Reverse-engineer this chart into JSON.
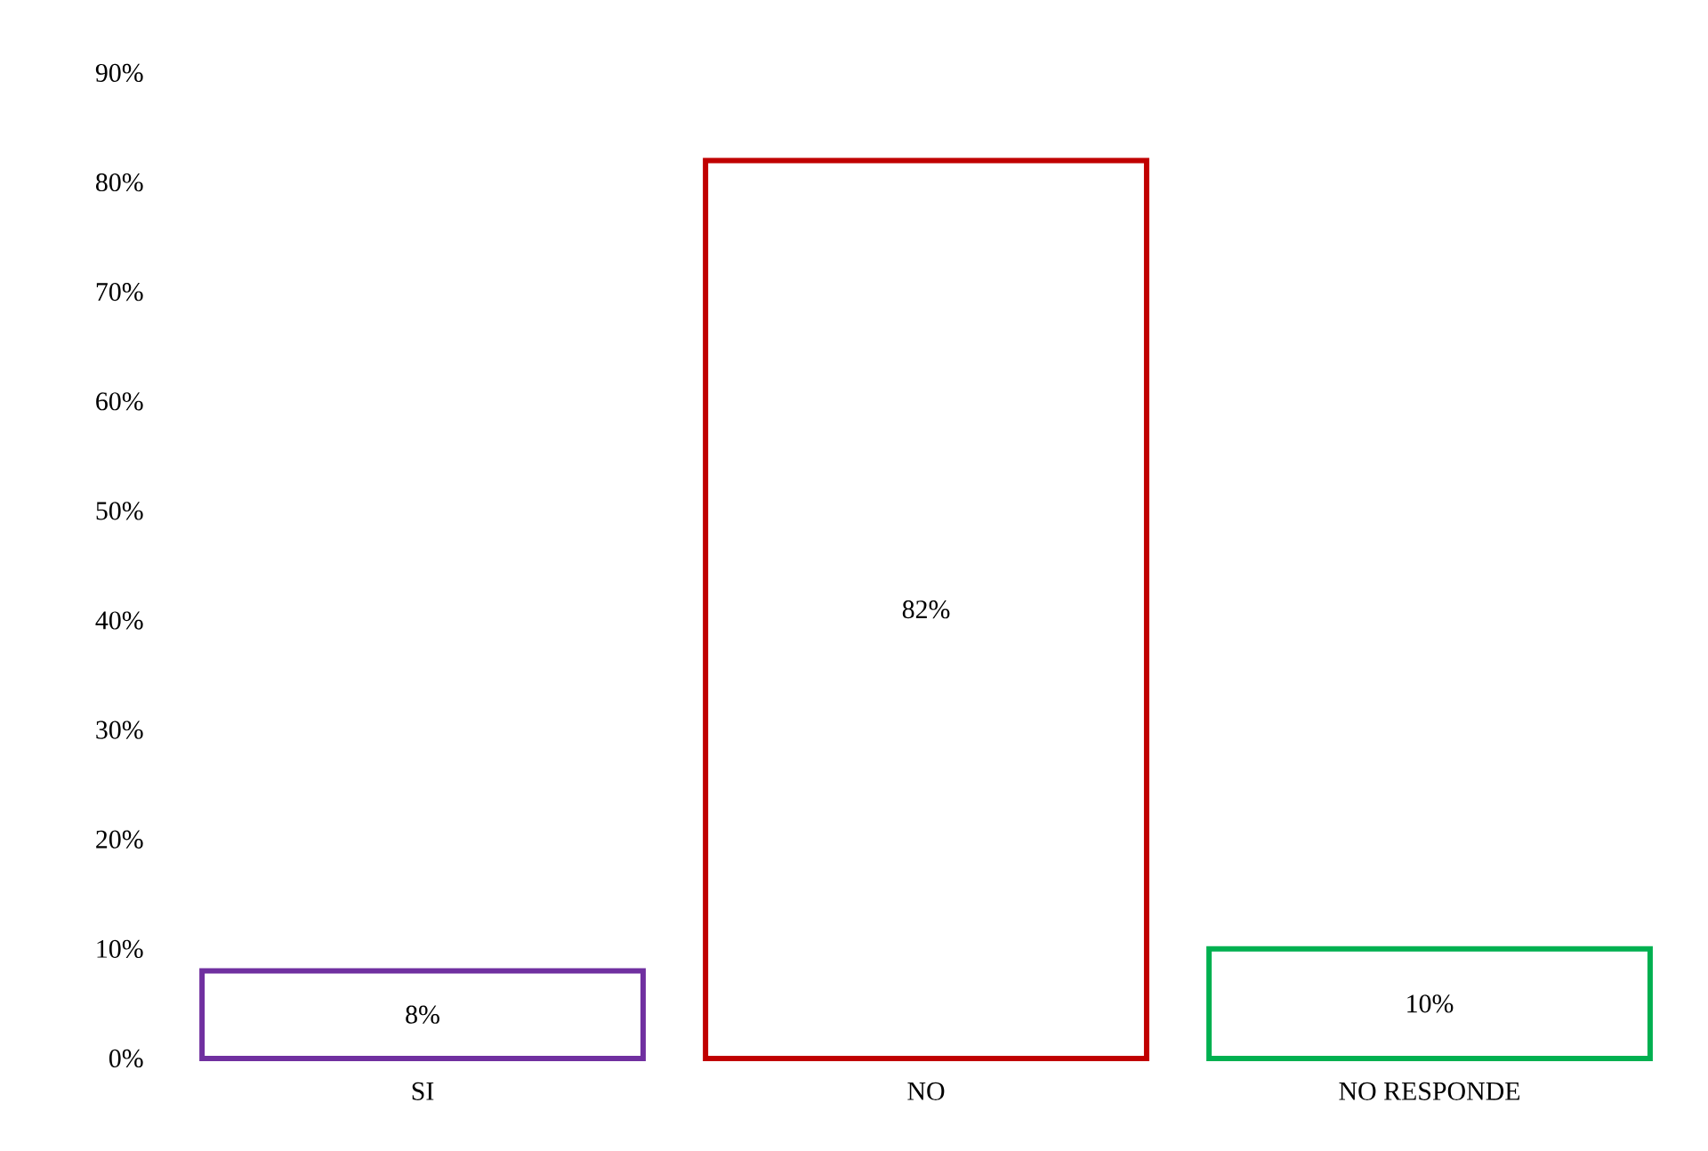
{
  "chart_data": {
    "type": "bar",
    "categories": [
      "SI",
      "NO",
      "NO RESPONDE"
    ],
    "values": [
      8,
      82,
      10
    ],
    "colors": [
      "#7030a0",
      "#c00000",
      "#00b050"
    ],
    "value_labels": [
      "8%",
      "82%",
      "10%"
    ],
    "ylim": [
      0,
      90
    ],
    "yticks": [
      {
        "value": 0,
        "label": "0%"
      },
      {
        "value": 10,
        "label": "10%"
      },
      {
        "value": 20,
        "label": "20%"
      },
      {
        "value": 30,
        "label": "30%"
      },
      {
        "value": 40,
        "label": "40%"
      },
      {
        "value": 50,
        "label": "50%"
      },
      {
        "value": 60,
        "label": "60%"
      },
      {
        "value": 70,
        "label": "70%"
      },
      {
        "value": 80,
        "label": "80%"
      },
      {
        "value": 90,
        "label": "90%"
      }
    ],
    "grid": false
  }
}
